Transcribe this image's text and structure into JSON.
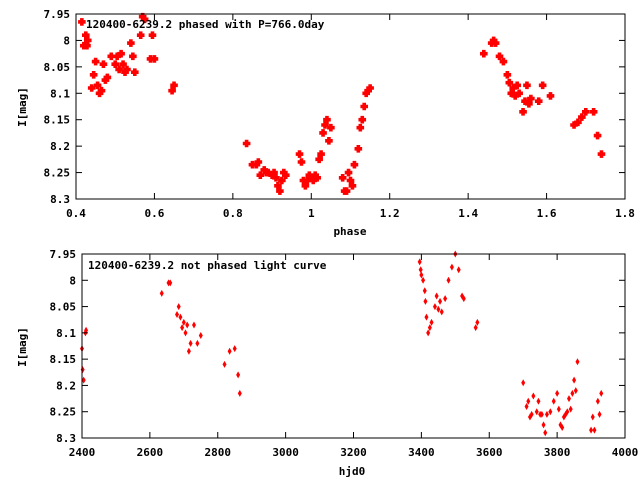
{
  "chart_data": [
    {
      "type": "scatter",
      "title": "120400-6239.2 phased with P=766.0day",
      "xlabel": "phase",
      "ylabel": "I[mag]",
      "xlim": [
        0.4,
        1.8
      ],
      "ylim": [
        8.3,
        7.95
      ],
      "y_inverted": true,
      "xticks": [
        "0.4",
        "0.6",
        "0.8",
        "1",
        "1.2",
        "1.4",
        "1.6",
        "1.8"
      ],
      "yticks": [
        "7.95",
        "8",
        "8.05",
        "8.1",
        "8.15",
        "8.2",
        "8.25",
        "8.3"
      ],
      "marker": "cross",
      "color": "#ff0000",
      "x": [
        0.415,
        0.42,
        0.425,
        0.428,
        0.43,
        0.44,
        0.445,
        0.45,
        0.455,
        0.46,
        0.465,
        0.47,
        0.475,
        0.48,
        0.49,
        0.5,
        0.505,
        0.51,
        0.515,
        0.52,
        0.525,
        0.53,
        0.54,
        0.545,
        0.55,
        0.565,
        0.57,
        0.575,
        0.59,
        0.595,
        0.6,
        0.645,
        0.65,
        0.835,
        0.85,
        0.86,
        0.865,
        0.87,
        0.88,
        0.885,
        0.89,
        0.9,
        0.905,
        0.91,
        0.915,
        0.92,
        0.925,
        0.93,
        0.935,
        0.97,
        0.975,
        0.98,
        0.985,
        0.99,
        0.995,
        1.0,
        1.005,
        1.01,
        1.015,
        1.02,
        1.025,
        1.03,
        1.035,
        1.04,
        1.045,
        1.05,
        1.08,
        1.085,
        1.09,
        1.095,
        1.1,
        1.105,
        1.11,
        1.12,
        1.125,
        1.13,
        1.135,
        1.14,
        1.145,
        1.15,
        1.44,
        1.46,
        1.465,
        1.47,
        1.48,
        1.49,
        1.5,
        1.505,
        1.51,
        1.515,
        1.52,
        1.525,
        1.53,
        1.54,
        1.545,
        1.55,
        1.555,
        1.56,
        1.58,
        1.59,
        1.61,
        1.67,
        1.68,
        1.69,
        1.7,
        1.72,
        1.73,
        1.74
      ],
      "y": [
        7.965,
        8.01,
        7.99,
        8.01,
        8.0,
        8.09,
        8.065,
        8.04,
        8.085,
        8.1,
        8.095,
        8.045,
        8.075,
        8.07,
        8.03,
        8.045,
        8.03,
        8.055,
        8.025,
        8.045,
        8.06,
        8.055,
        8.005,
        8.03,
        8.06,
        7.99,
        7.955,
        7.96,
        8.035,
        7.99,
        8.035,
        8.095,
        8.085,
        8.195,
        8.235,
        8.235,
        8.23,
        8.255,
        8.245,
        8.25,
        8.25,
        8.255,
        8.25,
        8.26,
        8.275,
        8.285,
        8.265,
        8.25,
        8.255,
        8.215,
        8.23,
        8.265,
        8.275,
        8.265,
        8.255,
        8.26,
        8.265,
        8.255,
        8.26,
        8.225,
        8.215,
        8.175,
        8.16,
        8.15,
        8.19,
        8.165,
        8.26,
        8.285,
        8.285,
        8.25,
        8.265,
        8.275,
        8.235,
        8.205,
        8.165,
        8.15,
        8.125,
        8.1,
        8.095,
        8.09,
        8.025,
        8.005,
        8.0,
        8.005,
        8.03,
        8.04,
        8.065,
        8.08,
        8.1,
        8.09,
        8.105,
        8.085,
        8.1,
        8.135,
        8.115,
        8.085,
        8.12,
        8.11,
        8.115,
        8.085,
        8.105,
        8.16,
        8.155,
        8.145,
        8.135,
        8.135,
        8.18,
        8.215
      ]
    },
    {
      "type": "scatter",
      "title": "120400-6239.2 not phased light curve",
      "xlabel": "hjd0",
      "ylabel": "I[mag]",
      "xlim": [
        2400,
        4000
      ],
      "ylim": [
        8.3,
        7.95
      ],
      "y_inverted": true,
      "xticks": [
        "2400",
        "2600",
        "2800",
        "3000",
        "3200",
        "3400",
        "3600",
        "3800",
        "4000"
      ],
      "yticks": [
        "7.95",
        "8",
        "8.05",
        "8.1",
        "8.15",
        "8.2",
        "8.25",
        "8.3"
      ],
      "marker": "diamond",
      "color": "#ff0000",
      "x": [
        2400,
        2402,
        2405,
        2410,
        2412,
        2635,
        2655,
        2660,
        2680,
        2685,
        2690,
        2695,
        2700,
        2705,
        2710,
        2715,
        2720,
        2730,
        2740,
        2750,
        2820,
        2835,
        2850,
        2860,
        2865,
        3395,
        3398,
        3400,
        3405,
        3410,
        3412,
        3415,
        3420,
        3425,
        3430,
        3440,
        3445,
        3450,
        3455,
        3460,
        3470,
        3480,
        3490,
        3500,
        3510,
        3520,
        3525,
        3560,
        3565,
        3700,
        3710,
        3715,
        3720,
        3725,
        3730,
        3740,
        3745,
        3750,
        3755,
        3760,
        3765,
        3770,
        3780,
        3790,
        3800,
        3805,
        3810,
        3815,
        3820,
        3825,
        3830,
        3835,
        3840,
        3845,
        3850,
        3855,
        3860,
        3900,
        3905,
        3910,
        3920,
        3925,
        3930
      ],
      "y": [
        8.13,
        8.17,
        8.19,
        8.1,
        8.095,
        8.025,
        8.005,
        8.005,
        8.065,
        8.05,
        8.07,
        8.09,
        8.08,
        8.1,
        8.085,
        8.135,
        8.12,
        8.085,
        8.12,
        8.105,
        8.16,
        8.135,
        8.13,
        8.18,
        8.215,
        7.965,
        7.98,
        7.99,
        8.0,
        8.02,
        8.04,
        8.07,
        8.1,
        8.09,
        8.08,
        8.05,
        8.03,
        8.055,
        8.04,
        8.06,
        8.035,
        8.0,
        7.975,
        7.95,
        7.98,
        8.03,
        8.035,
        8.09,
        8.08,
        8.195,
        8.24,
        8.23,
        8.26,
        8.255,
        8.22,
        8.25,
        8.23,
        8.255,
        8.255,
        8.275,
        8.29,
        8.255,
        8.25,
        8.23,
        8.215,
        8.245,
        8.275,
        8.28,
        8.26,
        8.255,
        8.25,
        8.225,
        8.245,
        8.215,
        8.19,
        8.21,
        8.155,
        8.285,
        8.26,
        8.285,
        8.23,
        8.255,
        8.215
      ]
    }
  ]
}
